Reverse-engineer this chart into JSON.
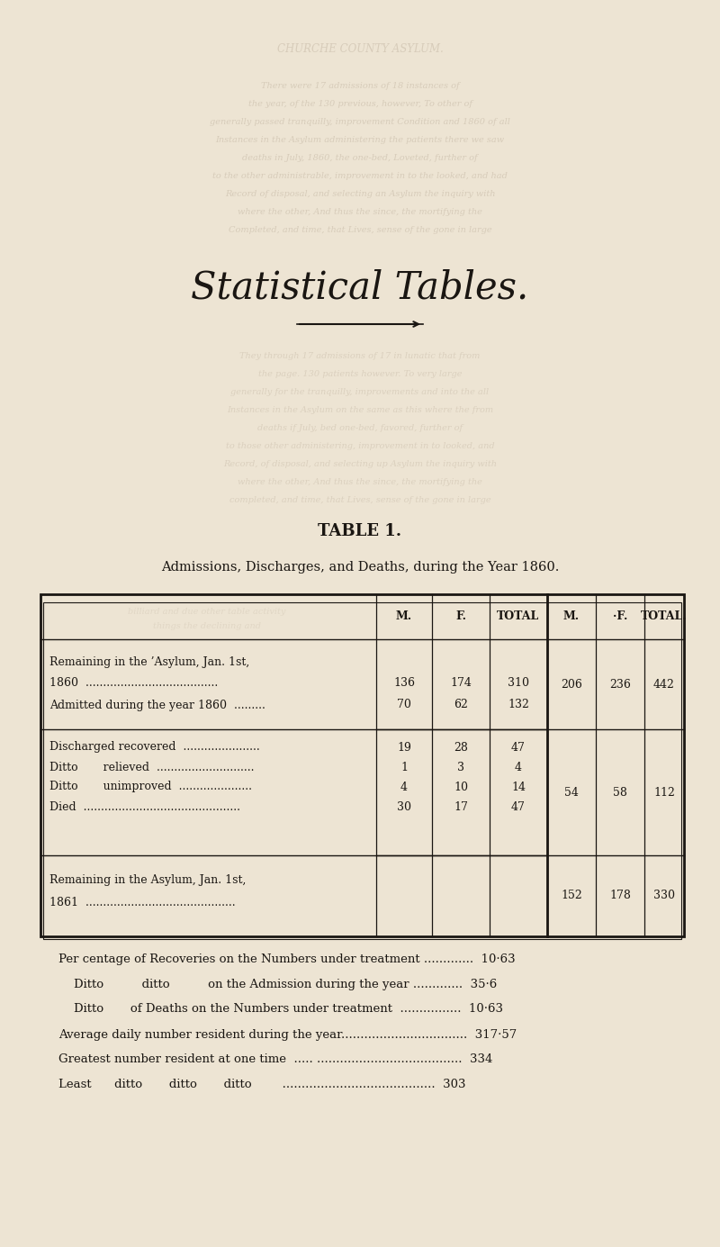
{
  "bg_color": "#ede4d3",
  "text_color": "#1a1612",
  "border_color": "#1a1612",
  "ghost_color": "#c5b8a5",
  "title_gothic": "Statistical Tables.",
  "title_table": "TABLE 1.",
  "subtitle": "Admissions, Discharges, and Deaths, during the Year 1860.",
  "col_headers": [
    "M.",
    "F.",
    "TOTAL",
    "M.",
    "·F.",
    "TOTAL."
  ],
  "fn_lines": [
    "Per centage of Recoveries on the Numbers under treatment .............  10·63",
    "    Ditto          ditto          on the Admission during the year .............  35·6",
    "    Ditto       of Deaths on the Numbers under treatment  ................  10·63",
    "Average daily number resident during the year.................................  317·57",
    "Greatest number resident at one time  ..... ......................................  334",
    "Least      ditto       ditto       ditto        ........................................  303"
  ]
}
